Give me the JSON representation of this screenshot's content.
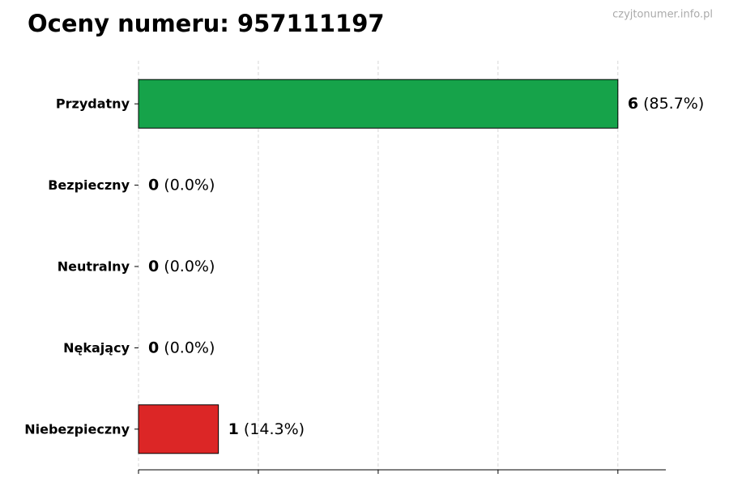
{
  "chart_data": {
    "type": "hbar",
    "title": "Oceny numeru: 957111197",
    "watermark": "czyjtonumer.info.pl",
    "categories": [
      "Przydatny",
      "Bezpieczny",
      "Neutralny",
      "Nękający",
      "Niebezpieczny"
    ],
    "values": [
      6,
      0,
      0,
      0,
      1
    ],
    "percent_labels": [
      "(85.7%)",
      "(0.0%)",
      "(0.0%)",
      "(0.0%)",
      "(14.3%)"
    ],
    "colors": [
      "#16a34a",
      "#2563eb",
      "#9ca3af",
      "#f59e0b",
      "#dc2626"
    ],
    "xlim": [
      0,
      6.6
    ],
    "xticks": [
      0,
      1.5,
      3,
      4.5,
      6
    ],
    "show_xtick_labels": false,
    "grid": true
  }
}
